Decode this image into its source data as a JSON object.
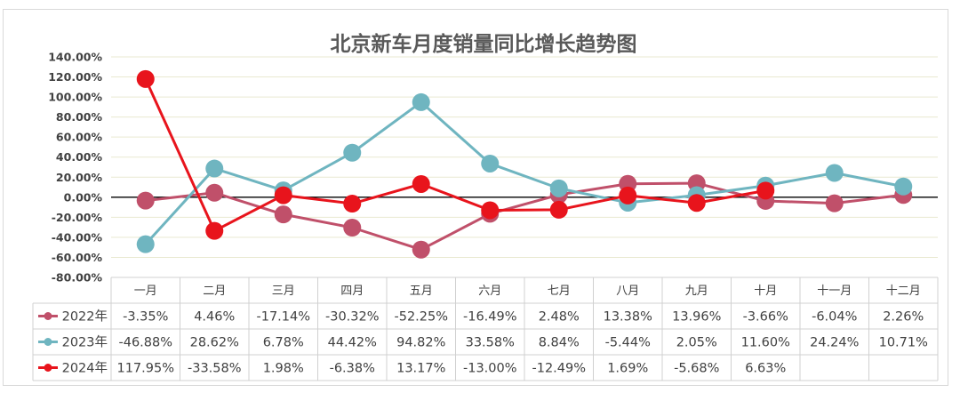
{
  "chart_data": {
    "type": "line",
    "title": "北京新车月度销量同比增长趋势图",
    "categories": [
      "一月",
      "二月",
      "三月",
      "四月",
      "五月",
      "六月",
      "七月",
      "八月",
      "九月",
      "十月",
      "十一月",
      "十二月"
    ],
    "ylim": [
      -80,
      140
    ],
    "ytick_step": 20,
    "ytick_labels": [
      "140.00%",
      "120.00%",
      "100.00%",
      "80.00%",
      "60.00%",
      "40.00%",
      "20.00%",
      "0.00%",
      "-20.00%",
      "-40.00%",
      "-60.00%",
      "-80.00%"
    ],
    "grid": true,
    "legend": "data-table",
    "series": [
      {
        "name": "2022年",
        "color": "#c0506a",
        "values": [
          -3.35,
          4.46,
          -17.14,
          -30.32,
          -52.25,
          -16.49,
          2.48,
          13.38,
          13.96,
          -3.66,
          -6.04,
          2.26
        ],
        "labels": [
          "-3.35%",
          "4.46%",
          "-17.14%",
          "-30.32%",
          "-52.25%",
          "-16.49%",
          "2.48%",
          "13.38%",
          "13.96%",
          "-3.66%",
          "-6.04%",
          "2.26%"
        ]
      },
      {
        "name": "2023年",
        "color": "#6fb5c0",
        "values": [
          -46.88,
          28.62,
          6.78,
          44.42,
          94.82,
          33.58,
          8.84,
          -5.44,
          2.05,
          11.6,
          24.24,
          10.71
        ],
        "labels": [
          "-46.88%",
          "28.62%",
          "6.78%",
          "44.42%",
          "94.82%",
          "33.58%",
          "8.84%",
          "-5.44%",
          "2.05%",
          "11.60%",
          "24.24%",
          "10.71%"
        ]
      },
      {
        "name": "2024年",
        "color": "#e8141c",
        "values": [
          117.95,
          -33.58,
          1.98,
          -6.38,
          13.17,
          -13.0,
          -12.49,
          1.69,
          -5.68,
          6.63,
          null,
          null
        ],
        "labels": [
          "117.95%",
          "-33.58%",
          "1.98%",
          "-6.38%",
          "13.17%",
          "-13.00%",
          "-12.49%",
          "1.69%",
          "-5.68%",
          "6.63%",
          "",
          ""
        ]
      }
    ]
  }
}
